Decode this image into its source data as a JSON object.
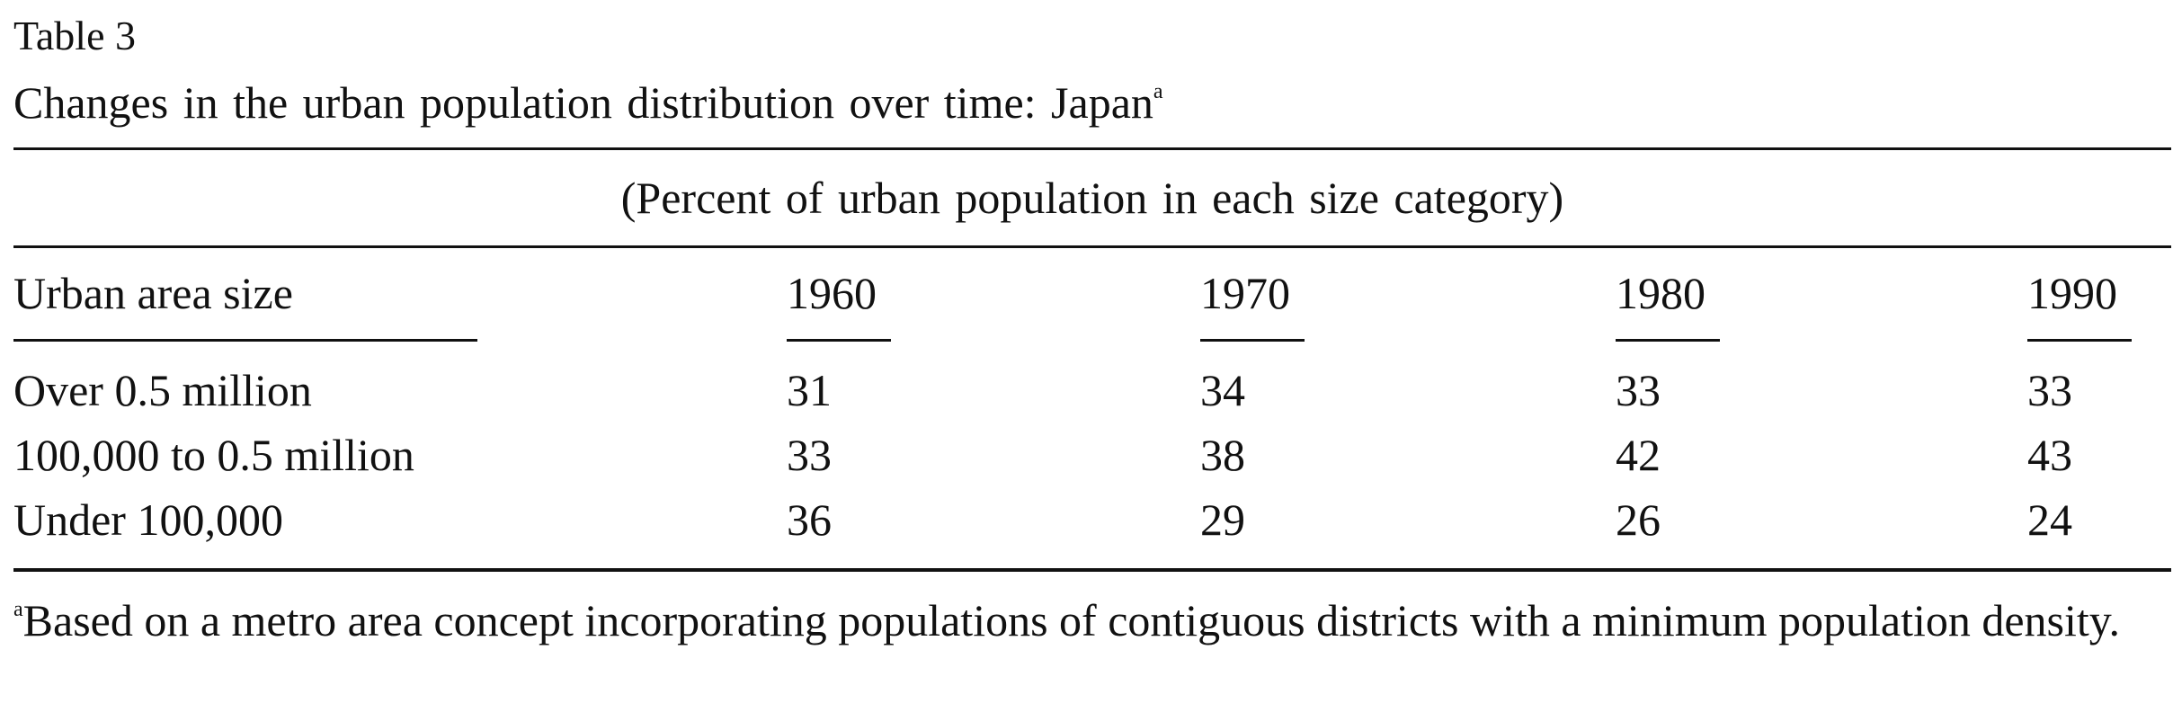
{
  "document": {
    "table_label": "Table 3",
    "title": "Changes in the urban population distribution over time: Japan",
    "title_footnote_marker": "a",
    "caption": "(Percent of urban population in each size category)",
    "footnote_marker": "a",
    "footnote": "Based on a metro area concept incorporating populations of contiguous districts with a minimum population density."
  },
  "table": {
    "headers": [
      "Urban area size",
      "1960",
      "1970",
      "1980",
      "1990"
    ],
    "rows": [
      {
        "label": "Over 0.5 million",
        "values": [
          "31",
          "34",
          "33",
          "33"
        ]
      },
      {
        "label": "100,000 to 0.5 million",
        "values": [
          "33",
          "38",
          "42",
          "43"
        ]
      },
      {
        "label": "Under 100,000",
        "values": [
          "36",
          "29",
          "26",
          "24"
        ]
      }
    ]
  }
}
